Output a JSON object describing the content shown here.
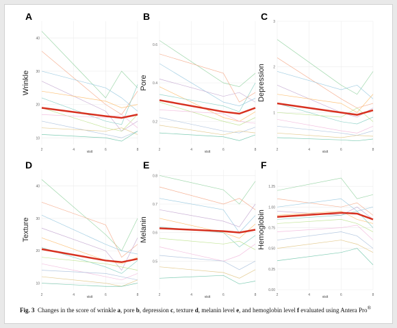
{
  "chart_data": [
    {
      "type": "line",
      "panel": "A",
      "y_label": "Wrinkle",
      "x_label": "visit",
      "x": [
        2,
        6,
        7,
        8
      ],
      "xlim": [
        2,
        8
      ],
      "xticks": [
        2,
        4,
        6,
        8
      ],
      "ylim": [
        8,
        45
      ],
      "yticks": [
        10,
        20,
        30,
        40
      ],
      "grid": true,
      "series": [
        {
          "color": "#8fd19e",
          "values": [
            42,
            22,
            30,
            25
          ]
        },
        {
          "color": "#f4a582",
          "values": [
            36,
            20,
            17,
            24
          ]
        },
        {
          "color": "#92c5de",
          "values": [
            30,
            25,
            22,
            18
          ]
        },
        {
          "color": "#c2a5cf",
          "values": [
            27,
            18,
            12,
            15
          ]
        },
        {
          "color": "#fdb863",
          "values": [
            24,
            21,
            19,
            20
          ]
        },
        {
          "color": "#80cdc1",
          "values": [
            22,
            15,
            14,
            26
          ]
        },
        {
          "color": "#b8e186",
          "values": [
            19,
            13,
            12,
            17
          ]
        },
        {
          "color": "#f1b6da",
          "values": [
            17,
            16,
            17,
            13
          ]
        },
        {
          "color": "#a6bddb",
          "values": [
            15,
            11,
            10,
            12
          ]
        },
        {
          "color": "#dfc27d",
          "values": [
            13,
            12,
            13,
            11
          ]
        },
        {
          "color": "#66c2a5",
          "values": [
            11,
            10,
            9,
            12
          ]
        },
        {
          "color": "#d7301f",
          "width": 2.5,
          "values": [
            19,
            16.5,
            16,
            17
          ]
        }
      ]
    },
    {
      "type": "line",
      "panel": "B",
      "y_label": "Pore",
      "x_label": "visit",
      "x": [
        2,
        6,
        7,
        8
      ],
      "xlim": [
        2,
        8
      ],
      "xticks": [
        2,
        4,
        6,
        8
      ],
      "ylim": [
        0.08,
        0.72
      ],
      "yticks": [
        0.2,
        0.4,
        0.6
      ],
      "grid": true,
      "series": [
        {
          "color": "#8fd19e",
          "values": [
            0.62,
            0.4,
            0.38,
            0.45
          ]
        },
        {
          "color": "#f4a582",
          "values": [
            0.55,
            0.45,
            0.3,
            0.35
          ]
        },
        {
          "color": "#92c5de",
          "values": [
            0.5,
            0.3,
            0.28,
            0.32
          ]
        },
        {
          "color": "#c2a5cf",
          "values": [
            0.42,
            0.33,
            0.35,
            0.3
          ]
        },
        {
          "color": "#fdb863",
          "values": [
            0.38,
            0.22,
            0.2,
            0.25
          ]
        },
        {
          "color": "#80cdc1",
          "values": [
            0.34,
            0.28,
            0.25,
            0.4
          ]
        },
        {
          "color": "#b8e186",
          "values": [
            0.3,
            0.2,
            0.18,
            0.22
          ]
        },
        {
          "color": "#f1b6da",
          "values": [
            0.26,
            0.24,
            0.2,
            0.19
          ]
        },
        {
          "color": "#a6bddb",
          "values": [
            0.22,
            0.15,
            0.14,
            0.17
          ]
        },
        {
          "color": "#dfc27d",
          "values": [
            0.18,
            0.13,
            0.15,
            0.14
          ]
        },
        {
          "color": "#66c2a5",
          "values": [
            0.14,
            0.12,
            0.1,
            0.13
          ]
        },
        {
          "color": "#d7301f",
          "width": 2.5,
          "values": [
            0.31,
            0.25,
            0.24,
            0.27
          ]
        }
      ]
    },
    {
      "type": "line",
      "panel": "C",
      "y_label": "Depression",
      "x_label": "visit",
      "x": [
        2,
        6,
        7,
        8
      ],
      "xlim": [
        2,
        8
      ],
      "xticks": [
        2,
        4,
        6,
        8
      ],
      "ylim": [
        0.3,
        3
      ],
      "yticks": [
        1,
        2,
        3
      ],
      "grid": true,
      "series": [
        {
          "color": "#8fd19e",
          "values": [
            2.6,
            1.6,
            1.4,
            1.9
          ]
        },
        {
          "color": "#f4a582",
          "values": [
            2.2,
            1.3,
            1.1,
            1.2
          ]
        },
        {
          "color": "#92c5de",
          "values": [
            1.9,
            1.5,
            1.6,
            1.3
          ]
        },
        {
          "color": "#c2a5cf",
          "values": [
            1.6,
            1.0,
            0.9,
            1.1
          ]
        },
        {
          "color": "#fdb863",
          "values": [
            1.4,
            1.2,
            1.0,
            1.4
          ]
        },
        {
          "color": "#80cdc1",
          "values": [
            1.2,
            0.8,
            0.75,
            0.9
          ]
        },
        {
          "color": "#b8e186",
          "values": [
            1.0,
            0.9,
            1.1,
            0.8
          ]
        },
        {
          "color": "#f1b6da",
          "values": [
            0.85,
            0.6,
            0.55,
            0.7
          ]
        },
        {
          "color": "#a6bddb",
          "values": [
            0.7,
            0.55,
            0.5,
            0.6
          ]
        },
        {
          "color": "#dfc27d",
          "values": [
            0.55,
            0.45,
            0.5,
            0.48
          ]
        },
        {
          "color": "#66c2a5",
          "values": [
            0.45,
            0.4,
            0.38,
            0.42
          ]
        },
        {
          "color": "#d7301f",
          "width": 2.5,
          "values": [
            1.2,
            1.0,
            0.95,
            1.05
          ]
        }
      ]
    },
    {
      "type": "line",
      "panel": "D",
      "y_label": "Texture",
      "x_label": "visit",
      "x": [
        2,
        6,
        7,
        8
      ],
      "xlim": [
        2,
        8
      ],
      "xticks": [
        2,
        4,
        6,
        8
      ],
      "ylim": [
        8,
        45
      ],
      "yticks": [
        10,
        20,
        30,
        40
      ],
      "grid": true,
      "series": [
        {
          "color": "#8fd19e",
          "values": [
            42,
            25,
            20,
            30
          ]
        },
        {
          "color": "#f4a582",
          "values": [
            35,
            28,
            18,
            22
          ]
        },
        {
          "color": "#92c5de",
          "values": [
            31,
            22,
            20,
            19
          ]
        },
        {
          "color": "#c2a5cf",
          "values": [
            27,
            20,
            14,
            24
          ]
        },
        {
          "color": "#fdb863",
          "values": [
            24,
            17,
            16,
            18
          ]
        },
        {
          "color": "#80cdc1",
          "values": [
            21,
            15,
            13,
            17
          ]
        },
        {
          "color": "#b8e186",
          "values": [
            18,
            16,
            15,
            14
          ]
        },
        {
          "color": "#f1b6da",
          "values": [
            16,
            12,
            11,
            13
          ]
        },
        {
          "color": "#a6bddb",
          "values": [
            14,
            13,
            12,
            11
          ]
        },
        {
          "color": "#dfc27d",
          "values": [
            12,
            10,
            9,
            11
          ]
        },
        {
          "color": "#66c2a5",
          "values": [
            10,
            9,
            9,
            10
          ]
        },
        {
          "color": "#d7301f",
          "width": 2.5,
          "values": [
            20.5,
            17,
            16.5,
            17.5
          ]
        }
      ]
    },
    {
      "type": "line",
      "panel": "E",
      "y_label": "Melanin",
      "x_label": "visit",
      "x": [
        2,
        6,
        7,
        8
      ],
      "xlim": [
        2,
        8
      ],
      "xticks": [
        2,
        4,
        6,
        8
      ],
      "ylim": [
        0.4,
        0.82
      ],
      "yticks": [
        0.5,
        0.6,
        0.7,
        0.8
      ],
      "grid": true,
      "series": [
        {
          "color": "#8fd19e",
          "values": [
            0.8,
            0.75,
            0.7,
            0.78
          ]
        },
        {
          "color": "#f4a582",
          "values": [
            0.76,
            0.7,
            0.72,
            0.68
          ]
        },
        {
          "color": "#92c5de",
          "values": [
            0.72,
            0.68,
            0.6,
            0.66
          ]
        },
        {
          "color": "#c2a5cf",
          "values": [
            0.68,
            0.64,
            0.62,
            0.7
          ]
        },
        {
          "color": "#fdb863",
          "values": [
            0.65,
            0.6,
            0.58,
            0.63
          ]
        },
        {
          "color": "#80cdc1",
          "values": [
            0.62,
            0.6,
            0.55,
            0.59
          ]
        },
        {
          "color": "#b8e186",
          "values": [
            0.58,
            0.56,
            0.57,
            0.54
          ]
        },
        {
          "color": "#f1b6da",
          "values": [
            0.55,
            0.5,
            0.52,
            0.56
          ]
        },
        {
          "color": "#a6bddb",
          "values": [
            0.52,
            0.5,
            0.47,
            0.5
          ]
        },
        {
          "color": "#dfc27d",
          "values": [
            0.48,
            0.46,
            0.44,
            0.47
          ]
        },
        {
          "color": "#66c2a5",
          "values": [
            0.44,
            0.45,
            0.42,
            0.43
          ]
        },
        {
          "color": "#d7301f",
          "width": 2.5,
          "values": [
            0.615,
            0.605,
            0.6,
            0.61
          ]
        }
      ]
    },
    {
      "type": "line",
      "panel": "F",
      "y_label": "Hemoglobin",
      "x_label": "visit",
      "x": [
        2,
        6,
        7,
        8
      ],
      "xlim": [
        2,
        8
      ],
      "xticks": [
        2,
        4,
        6,
        8
      ],
      "ylim": [
        0,
        1.45
      ],
      "yticks": [
        {
          "value": 0,
          "label": "0.00"
        },
        {
          "value": 0.25,
          "label": "0.25"
        },
        {
          "value": 0.5,
          "label": "0.50"
        },
        {
          "value": 0.75,
          "label": "0.75"
        },
        {
          "value": 1,
          "label": "1.00"
        },
        {
          "value": 1.25,
          "label": "1.25"
        }
      ],
      "grid": true,
      "series": [
        {
          "color": "#8fd19e",
          "values": [
            1.2,
            1.35,
            1.1,
            1.15
          ]
        },
        {
          "color": "#f4a582",
          "values": [
            1.1,
            1.0,
            1.05,
            0.9
          ]
        },
        {
          "color": "#92c5de",
          "values": [
            1.0,
            1.1,
            0.95,
            1.0
          ]
        },
        {
          "color": "#c2a5cf",
          "values": [
            0.95,
            0.9,
            1.0,
            0.85
          ]
        },
        {
          "color": "#fdb863",
          "values": [
            0.9,
            0.95,
            0.85,
            0.8
          ]
        },
        {
          "color": "#80cdc1",
          "values": [
            0.85,
            0.9,
            0.95,
            0.75
          ]
        },
        {
          "color": "#b8e186",
          "values": [
            0.8,
            0.85,
            0.8,
            0.7
          ]
        },
        {
          "color": "#f1b6da",
          "values": [
            0.7,
            0.75,
            0.78,
            0.6
          ]
        },
        {
          "color": "#a6bddb",
          "values": [
            0.6,
            0.7,
            0.65,
            0.5
          ]
        },
        {
          "color": "#dfc27d",
          "values": [
            0.5,
            0.6,
            0.55,
            0.45
          ]
        },
        {
          "color": "#66c2a5",
          "values": [
            0.35,
            0.45,
            0.5,
            0.3
          ]
        },
        {
          "color": "#d7301f",
          "width": 2.5,
          "values": [
            0.88,
            0.93,
            0.92,
            0.85
          ]
        }
      ]
    }
  ],
  "caption": {
    "label": "Fig. 3",
    "parts": [
      "  Changes in the score of wrinkle ",
      "a",
      ", pore ",
      "b",
      ", depression ",
      "c",
      ", texture ",
      "d",
      ", melanin level ",
      "e",
      ", and hemoglobin level ",
      "f",
      " evaluated using Antera Pro",
      "®"
    ]
  }
}
